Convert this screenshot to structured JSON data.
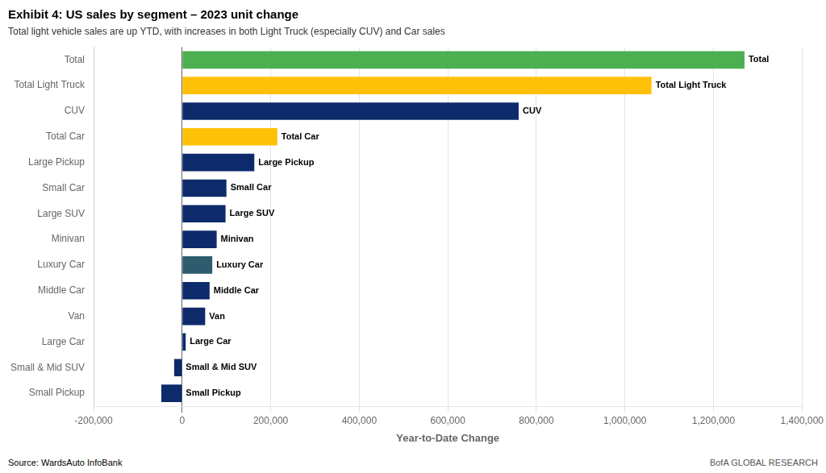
{
  "chart_data": {
    "type": "bar",
    "orientation": "horizontal",
    "title": "Exhibit 4: US sales by segment – 2023 unit change",
    "subtitle": "Total light vehicle sales are up YTD, with increases in both Light Truck (especially CUV) and Car sales",
    "xlabel": "Year-to-Date Change",
    "source": "Source:  WardsAuto InfoBank",
    "footnote": "BofA GLOBAL RESEARCH",
    "categories": [
      "Total",
      "Total Light Truck",
      "CUV",
      "Total Car",
      "Large Pickup",
      "Small Car",
      "Large SUV",
      "Minivan",
      "Luxury Car",
      "Middle Car",
      "Van",
      "Large Car",
      "Small & Mid SUV",
      "Small Pickup"
    ],
    "values": [
      1270000,
      1060000,
      760000,
      215000,
      163000,
      100000,
      98000,
      78000,
      68000,
      62000,
      52000,
      8000,
      -18000,
      -47000
    ],
    "colors": [
      "#4CAF50",
      "#FFC107",
      "#0D2B6B",
      "#FFC107",
      "#0D2B6B",
      "#0D2B6B",
      "#0D2B6B",
      "#0D2B6B",
      "#2E5C6E",
      "#0D2B6B",
      "#0D2B6B",
      "#0D2B6B",
      "#0D2B6B",
      "#0D2B6B"
    ],
    "xlim": [
      -200000,
      1400000
    ],
    "xticks": [
      {
        "value": -200000,
        "label": "-200,000"
      },
      0,
      {
        "value": 200000,
        "label": "200,000"
      },
      {
        "value": 400000,
        "label": "400,000"
      },
      {
        "value": 600000,
        "label": "600,000"
      },
      {
        "value": 800000,
        "label": "800,000"
      },
      {
        "value": 1000000,
        "label": "1,000,000"
      },
      {
        "value": 1200000,
        "label": "1,200,000"
      },
      {
        "value": 1400000,
        "label": "1,400,000"
      }
    ],
    "grid": true
  }
}
